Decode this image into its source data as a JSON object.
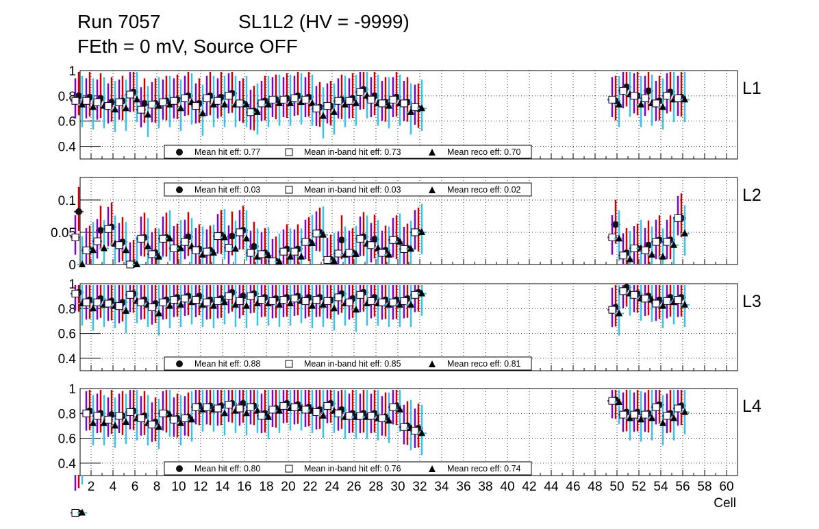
{
  "header": {
    "run_label": "Run 7057",
    "chamber_label": "SL1L2 (HV = -9999)",
    "conditions_label": "FEth = 0 mV, Source OFF"
  },
  "colors": {
    "hit": "#cc0000",
    "inband": "#7b00d4",
    "reco": "#33c3f0",
    "grid": "#000000"
  },
  "chart_data": {
    "type": "scatter",
    "xlabel": "Cell",
    "xlim": [
      1,
      61
    ],
    "x_ticks": [
      2,
      4,
      6,
      8,
      10,
      12,
      14,
      16,
      18,
      20,
      22,
      24,
      26,
      28,
      30,
      32,
      34,
      36,
      38,
      40,
      42,
      44,
      46,
      48,
      50,
      52,
      54,
      56,
      58,
      60
    ],
    "panels": [
      {
        "name": "L1",
        "ylim": [
          0.3,
          1.0
        ],
        "y_ticks": [
          "0.4",
          "0.6",
          "0.8",
          "1"
        ],
        "y_tick_values": [
          0.4,
          0.6,
          0.8,
          1.0
        ],
        "legend_position": "bottom",
        "legend": {
          "hit": "Mean hit  eff: 0.77",
          "inband": "Mean in-band hit eff: 0.73",
          "reco": "Mean reco eff: 0.70"
        },
        "cells": [
          1,
          2,
          3,
          4,
          5,
          6,
          7,
          8,
          9,
          10,
          11,
          12,
          13,
          14,
          15,
          16,
          17,
          18,
          19,
          20,
          21,
          22,
          23,
          24,
          25,
          26,
          27,
          28,
          29,
          30,
          31,
          32,
          50,
          51,
          52,
          53,
          54,
          55,
          56
        ],
        "hit": [
          0.8,
          0.79,
          0.78,
          0.75,
          0.76,
          0.83,
          0.74,
          0.74,
          0.76,
          0.77,
          0.8,
          0.74,
          0.8,
          0.79,
          0.82,
          0.74,
          0.68,
          0.76,
          0.77,
          0.78,
          0.8,
          0.79,
          0.71,
          0.72,
          0.77,
          0.78,
          0.85,
          0.8,
          0.75,
          0.79,
          0.75,
          0.7,
          0.76,
          0.87,
          0.8,
          0.84,
          0.76,
          0.83,
          0.79
        ],
        "inband": [
          0.76,
          0.76,
          0.75,
          0.72,
          0.75,
          0.81,
          0.69,
          0.73,
          0.75,
          0.76,
          0.78,
          0.72,
          0.78,
          0.76,
          0.8,
          0.74,
          0.67,
          0.74,
          0.77,
          0.77,
          0.78,
          0.77,
          0.7,
          0.72,
          0.76,
          0.76,
          0.83,
          0.77,
          0.74,
          0.77,
          0.74,
          0.71,
          0.77,
          0.84,
          0.8,
          0.78,
          0.74,
          0.8,
          0.78
        ],
        "reco": [
          0.73,
          0.71,
          0.72,
          0.69,
          0.7,
          0.77,
          0.65,
          0.72,
          0.73,
          0.7,
          0.75,
          0.66,
          0.73,
          0.73,
          0.73,
          0.73,
          0.67,
          0.73,
          0.74,
          0.74,
          0.75,
          0.74,
          0.64,
          0.67,
          0.73,
          0.74,
          0.8,
          0.74,
          0.72,
          0.74,
          0.67,
          0.7,
          0.73,
          0.81,
          0.73,
          0.74,
          0.71,
          0.77,
          0.77
        ]
      },
      {
        "name": "L2",
        "ylim": [
          0.0,
          0.135
        ],
        "y_ticks": [
          "0",
          "0.05",
          "0.1"
        ],
        "y_tick_values": [
          0,
          0.05,
          0.1
        ],
        "legend_position": "top",
        "legend": {
          "hit": "Mean hit  eff: 0.03",
          "inband": "Mean in-band hit eff: 0.03",
          "reco": "Mean reco eff: 0.02"
        },
        "cells": [
          1,
          2,
          3,
          4,
          5,
          6,
          7,
          8,
          9,
          10,
          11,
          12,
          13,
          14,
          15,
          16,
          17,
          18,
          19,
          20,
          21,
          22,
          23,
          24,
          25,
          26,
          27,
          28,
          29,
          30,
          31,
          32,
          50,
          51,
          52,
          53,
          54,
          55,
          56
        ],
        "hit": [
          0.082,
          0.022,
          0.053,
          0.058,
          0.035,
          0.0,
          0.042,
          0.018,
          0.042,
          0.025,
          0.043,
          0.024,
          0.022,
          0.046,
          0.044,
          0.053,
          0.028,
          0.018,
          0.005,
          0.024,
          0.024,
          0.035,
          0.05,
          0.008,
          0.038,
          0.018,
          0.043,
          0.039,
          0.022,
          0.038,
          0.025,
          0.05,
          0.062,
          0.018,
          0.025,
          0.03,
          0.038,
          0.038,
          0.072
        ],
        "inband": [
          0.042,
          0.022,
          0.036,
          0.055,
          0.03,
          0.0,
          0.04,
          0.016,
          0.04,
          0.025,
          0.035,
          0.022,
          0.02,
          0.044,
          0.026,
          0.05,
          0.018,
          0.016,
          0.005,
          0.02,
          0.02,
          0.035,
          0.048,
          0.007,
          0.017,
          0.018,
          0.04,
          0.03,
          0.018,
          0.038,
          0.024,
          0.05,
          0.042,
          0.014,
          0.025,
          0.022,
          0.035,
          0.035,
          0.072
        ],
        "reco": [
          0.0,
          0.022,
          0.025,
          0.032,
          0.022,
          0.0,
          0.028,
          0.012,
          0.04,
          0.025,
          0.028,
          0.015,
          0.018,
          0.042,
          0.024,
          0.04,
          0.012,
          0.014,
          0.004,
          0.012,
          0.012,
          0.033,
          0.046,
          0.005,
          0.015,
          0.016,
          0.032,
          0.025,
          0.015,
          0.035,
          0.024,
          0.05,
          0.04,
          0.008,
          0.025,
          0.015,
          0.012,
          0.03,
          0.048
        ]
      },
      {
        "name": "L3",
        "ylim": [
          0.3,
          1.0
        ],
        "y_ticks": [
          "0.4",
          "0.6",
          "0.8",
          "1"
        ],
        "y_tick_values": [
          0.4,
          0.6,
          0.8,
          1.0
        ],
        "legend_position": "bottom",
        "legend": {
          "hit": "Mean hit  eff: 0.88",
          "inband": "Mean in-band hit eff: 0.85",
          "reco": "Mean reco eff: 0.81"
        },
        "cells": [
          1,
          2,
          3,
          4,
          5,
          6,
          7,
          8,
          9,
          10,
          11,
          12,
          13,
          14,
          15,
          16,
          17,
          18,
          19,
          20,
          21,
          22,
          23,
          24,
          25,
          26,
          27,
          28,
          29,
          30,
          31,
          32,
          50,
          51,
          52,
          53,
          54,
          55,
          56
        ],
        "hit": [
          0.93,
          0.87,
          0.88,
          0.86,
          0.85,
          0.92,
          0.87,
          0.84,
          0.87,
          0.89,
          0.9,
          0.9,
          0.87,
          0.88,
          0.93,
          0.9,
          0.92,
          0.89,
          0.88,
          0.89,
          0.9,
          0.89,
          0.89,
          0.87,
          0.92,
          0.88,
          0.93,
          0.89,
          0.87,
          0.87,
          0.88,
          0.93,
          0.81,
          0.97,
          0.92,
          0.9,
          0.87,
          0.89,
          0.89
        ],
        "inband": [
          0.92,
          0.85,
          0.85,
          0.84,
          0.82,
          0.91,
          0.85,
          0.81,
          0.85,
          0.87,
          0.88,
          0.87,
          0.85,
          0.86,
          0.9,
          0.86,
          0.9,
          0.87,
          0.86,
          0.87,
          0.88,
          0.86,
          0.87,
          0.86,
          0.89,
          0.85,
          0.91,
          0.86,
          0.85,
          0.85,
          0.86,
          0.91,
          0.79,
          0.94,
          0.91,
          0.88,
          0.84,
          0.86,
          0.87
        ],
        "reco": [
          0.84,
          0.8,
          0.83,
          0.82,
          0.78,
          0.86,
          0.83,
          0.76,
          0.82,
          0.83,
          0.85,
          0.83,
          0.82,
          0.85,
          0.83,
          0.82,
          0.84,
          0.84,
          0.83,
          0.84,
          0.86,
          0.82,
          0.83,
          0.8,
          0.84,
          0.79,
          0.84,
          0.84,
          0.83,
          0.83,
          0.83,
          0.92,
          0.76,
          0.92,
          0.88,
          0.87,
          0.82,
          0.85,
          0.83
        ]
      },
      {
        "name": "L4",
        "ylim": [
          0.3,
          1.0
        ],
        "y_ticks": [
          "0.4",
          "0.6",
          "0.8",
          "1"
        ],
        "y_tick_values": [
          0.4,
          0.6,
          0.8,
          1.0
        ],
        "legend_position": "bottom",
        "legend": {
          "hit": "Mean hit  eff: 0.80",
          "inband": "Mean in-band hit eff: 0.76",
          "reco": "Mean reco eff: 0.74"
        },
        "cells": [
          1,
          2,
          3,
          4,
          5,
          6,
          7,
          8,
          9,
          10,
          11,
          12,
          13,
          14,
          15,
          16,
          17,
          18,
          19,
          20,
          21,
          22,
          23,
          24,
          25,
          26,
          27,
          28,
          29,
          30,
          31,
          32,
          50,
          51,
          52,
          53,
          54,
          55,
          56
        ],
        "hit": [
          0.0,
          0.82,
          0.8,
          0.79,
          0.78,
          0.82,
          0.78,
          0.73,
          0.8,
          0.76,
          0.77,
          0.86,
          0.86,
          0.86,
          0.88,
          0.88,
          0.86,
          0.8,
          0.84,
          0.88,
          0.87,
          0.85,
          0.83,
          0.88,
          0.83,
          0.8,
          0.8,
          0.8,
          0.77,
          0.86,
          0.7,
          0.68,
          0.91,
          0.81,
          0.81,
          0.8,
          0.87,
          0.8,
          0.86
        ],
        "inband": [
          0.0,
          0.8,
          0.78,
          0.75,
          0.78,
          0.81,
          0.76,
          0.71,
          0.8,
          0.75,
          0.76,
          0.85,
          0.85,
          0.84,
          0.87,
          0.84,
          0.85,
          0.78,
          0.83,
          0.86,
          0.85,
          0.83,
          0.81,
          0.86,
          0.8,
          0.78,
          0.78,
          0.78,
          0.76,
          0.85,
          0.69,
          0.66,
          0.9,
          0.79,
          0.79,
          0.79,
          0.85,
          0.78,
          0.84
        ],
        "reco": [
          0.0,
          0.72,
          0.72,
          0.7,
          0.73,
          0.76,
          0.72,
          0.69,
          0.79,
          0.72,
          0.75,
          0.83,
          0.83,
          0.8,
          0.82,
          0.8,
          0.82,
          0.77,
          0.82,
          0.84,
          0.84,
          0.82,
          0.78,
          0.82,
          0.77,
          0.77,
          0.77,
          0.76,
          0.74,
          0.83,
          0.68,
          0.64,
          0.89,
          0.76,
          0.75,
          0.76,
          0.72,
          0.76,
          0.81
        ]
      }
    ]
  }
}
